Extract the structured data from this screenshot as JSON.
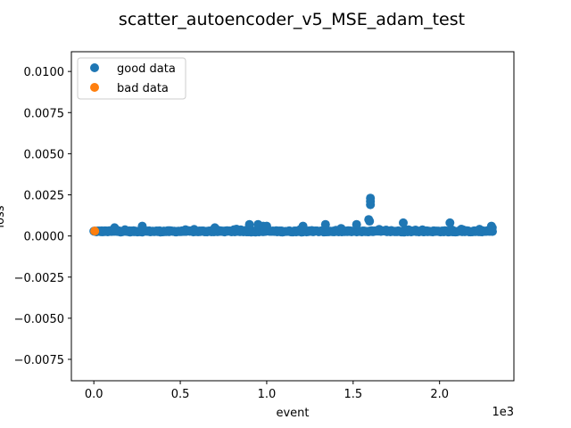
{
  "chart_data": {
    "type": "scatter",
    "title": "scatter_autoencoder_v5_MSE_adam_test",
    "xlabel": "event",
    "ylabel": "loss",
    "x_scale_label": "1e3",
    "xlim": [
      -130,
      2430
    ],
    "ylim": [
      -0.0088,
      0.0112
    ],
    "x_ticks": [
      0,
      500,
      1000,
      1500,
      2000
    ],
    "x_tick_labels": [
      "0.0",
      "0.5",
      "1.0",
      "1.5",
      "2.0"
    ],
    "y_ticks": [
      -0.0075,
      -0.005,
      -0.0025,
      0.0,
      0.0025,
      0.005,
      0.0075,
      0.01
    ],
    "y_tick_labels": [
      "−0.0075",
      "−0.0050",
      "−0.0025",
      "0.0000",
      "0.0025",
      "0.0050",
      "0.0075",
      "0.0100"
    ],
    "grid": false,
    "legend_position": "top-left",
    "series": [
      {
        "name": "good data",
        "color": "#1f77b4",
        "x_range": [
          0,
          2310
        ],
        "baseline": 0.00028,
        "spread": 8e-05,
        "n_points": 2310,
        "outliers": [
          {
            "x": 120,
            "y": 0.0005
          },
          {
            "x": 280,
            "y": 0.0006
          },
          {
            "x": 700,
            "y": 0.0005
          },
          {
            "x": 900,
            "y": 0.0007
          },
          {
            "x": 950,
            "y": 0.0007
          },
          {
            "x": 980,
            "y": 0.0006
          },
          {
            "x": 1000,
            "y": 0.0006
          },
          {
            "x": 1210,
            "y": 0.0006
          },
          {
            "x": 1340,
            "y": 0.0007
          },
          {
            "x": 1520,
            "y": 0.0007
          },
          {
            "x": 1590,
            "y": 0.001
          },
          {
            "x": 1595,
            "y": 0.0009
          },
          {
            "x": 1600,
            "y": 0.0019
          },
          {
            "x": 1600,
            "y": 0.0021
          },
          {
            "x": 1600,
            "y": 0.0023
          },
          {
            "x": 1790,
            "y": 0.0008
          },
          {
            "x": 2060,
            "y": 0.0008
          },
          {
            "x": 2300,
            "y": 0.0006
          },
          {
            "x": 2305,
            "y": 0.0005
          }
        ]
      },
      {
        "name": "bad data",
        "color": "#ff7f0e",
        "points": [
          {
            "x": 5,
            "y": 0.0003
          }
        ]
      }
    ]
  }
}
